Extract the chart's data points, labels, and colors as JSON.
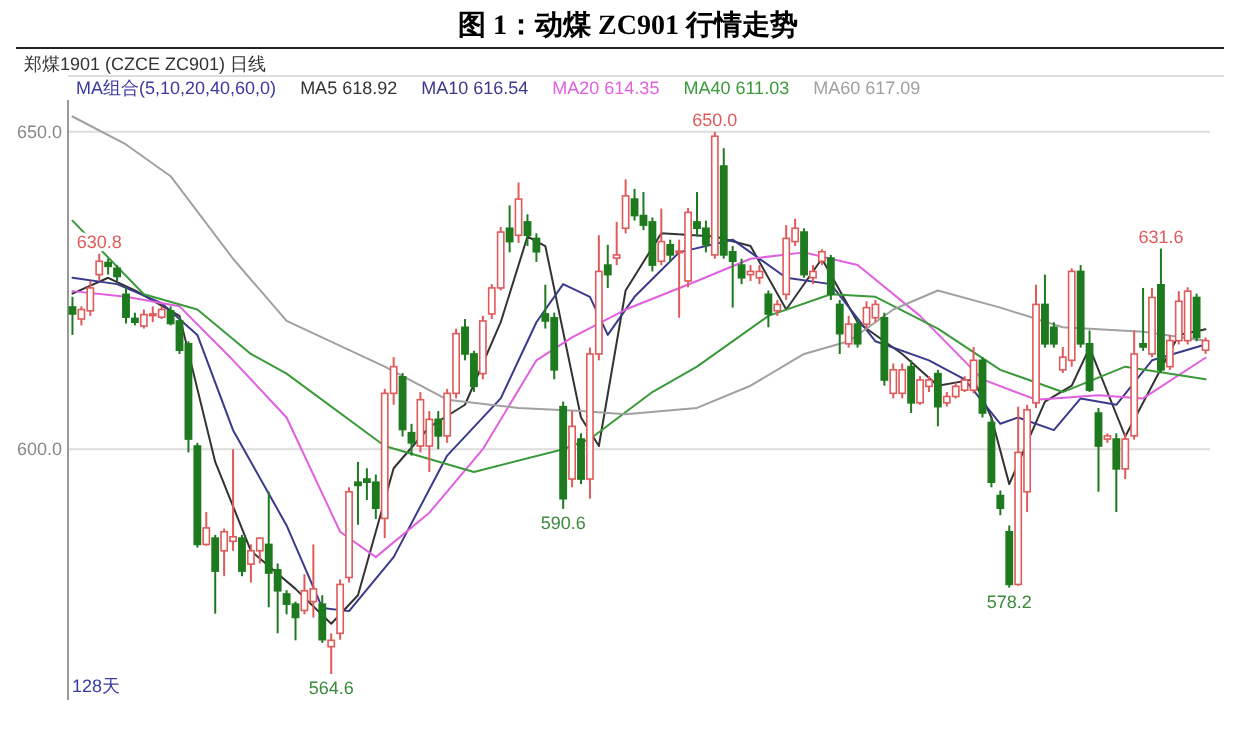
{
  "chart_data": {
    "type": "candlestick",
    "title": "图 1：动煤 ZC901 行情走势",
    "subtitle": "郑煤1901 (CZCE ZC901)  日线",
    "annotations": [
      "MA组合(5,10,20,40,60,0)",
      "128天",
      {
        "text": "630.8",
        "y": 630.8
      },
      {
        "text": "564.6",
        "y": 564.6
      },
      {
        "text": "590.6",
        "y": 590.6
      },
      {
        "text": "650.0",
        "y": 650.0
      },
      {
        "text": "578.2",
        "y": 578.2
      },
      {
        "text": "631.6",
        "y": 631.6
      }
    ],
    "ylim": [
      560.5,
      655
    ],
    "yticks": [
      {
        "value": 600,
        "label": "600.0"
      },
      {
        "value": 650,
        "label": "650.0"
      }
    ],
    "grid": "y",
    "legend": "top left",
    "tick_labels": "y",
    "categories": [
      null,
      null,
      null,
      null,
      null,
      null,
      null,
      null,
      null,
      null,
      null,
      null,
      null,
      null,
      null,
      null,
      null,
      null,
      null,
      null,
      null,
      null,
      null,
      null,
      null,
      null,
      null,
      null,
      null,
      null,
      null,
      null,
      null,
      null,
      null,
      null,
      null,
      null,
      null,
      null,
      null,
      null,
      null,
      null,
      null,
      null,
      null,
      null,
      null,
      null,
      null,
      null,
      null,
      null,
      null,
      null,
      null,
      null,
      null,
      null,
      null,
      null,
      null,
      null,
      null,
      null,
      null,
      null,
      null,
      null,
      null,
      null,
      null,
      null,
      null,
      null,
      null,
      null,
      null,
      null,
      null,
      null,
      null,
      null,
      null,
      null,
      null,
      null,
      null,
      null,
      null,
      null,
      null,
      null,
      null,
      null,
      null,
      null,
      null,
      null,
      null,
      null,
      null,
      null,
      null,
      null,
      null,
      null,
      null,
      null,
      null,
      null,
      null,
      null,
      null,
      null,
      null,
      null,
      null,
      null,
      null,
      null,
      null,
      null,
      null,
      null,
      null,
      null
    ],
    "ohlc": [
      [
        622.4,
        624,
        618,
        621.3
      ],
      [
        620.5,
        622.5,
        619.5,
        622
      ],
      [
        621.8,
        626.5,
        621,
        625.4
      ],
      [
        627.5,
        630.8,
        626.5,
        629.6
      ],
      [
        629.4,
        630,
        627.5,
        628.8
      ],
      [
        628.5,
        629,
        626.5,
        627.2
      ],
      [
        624.4,
        625.5,
        619.8,
        620.8
      ],
      [
        620.6,
        621.5,
        619.5,
        620
      ],
      [
        619.4,
        622,
        619,
        621.2
      ],
      [
        621.2,
        622.5,
        620,
        621.3
      ],
      [
        620.8,
        622.5,
        620.5,
        622
      ],
      [
        621.8,
        622.5,
        619.5,
        619.8
      ],
      [
        620.2,
        620.8,
        615,
        615.6
      ],
      [
        616.6,
        617,
        599.5,
        601.6
      ],
      [
        600.5,
        601,
        584.5,
        585
      ],
      [
        585,
        590.1,
        584.8,
        587.6
      ],
      [
        586,
        586.5,
        574.1,
        580.8
      ],
      [
        584,
        587.5,
        580,
        587
      ],
      [
        585.5,
        600,
        584,
        586.2
      ],
      [
        586,
        586.5,
        580,
        580.8
      ],
      [
        581.9,
        585,
        579,
        584
      ],
      [
        584,
        586,
        582,
        586
      ],
      [
        585,
        593.3,
        575.1,
        580.5
      ],
      [
        581,
        582,
        571,
        577.7
      ],
      [
        577.2,
        577.8,
        574,
        575.6
      ],
      [
        575.6,
        576,
        569.9,
        573.5
      ],
      [
        574.6,
        580.3,
        574,
        577.7
      ],
      [
        576,
        585,
        573.5,
        578
      ],
      [
        575.6,
        577,
        569.5,
        570
      ],
      [
        568.9,
        571,
        564.6,
        569.9
      ],
      [
        571,
        579.5,
        570,
        578.7
      ],
      [
        579.8,
        594,
        579,
        593.3
      ],
      [
        594.8,
        598,
        588.1,
        594.3
      ],
      [
        595.3,
        597,
        592,
        594.8
      ],
      [
        594.8,
        596,
        589,
        590.7
      ],
      [
        589.1,
        609.5,
        586,
        608.8
      ],
      [
        608.8,
        614.5,
        607,
        613
      ],
      [
        611.4,
        612,
        602,
        603.1
      ],
      [
        602.6,
        604,
        599,
        601
      ],
      [
        600.5,
        609,
        599.5,
        607.8
      ],
      [
        600.5,
        606,
        596.4,
        604.7
      ],
      [
        604.7,
        606,
        600,
        602.1
      ],
      [
        602.1,
        609.5,
        601,
        608.8
      ],
      [
        608.8,
        619,
        608,
        618.2
      ],
      [
        619.2,
        620.5,
        614,
        615
      ],
      [
        615,
        615.5,
        609,
        609.9
      ],
      [
        611.9,
        621,
        611,
        620.2
      ],
      [
        621.3,
        626,
        620.5,
        625.4
      ],
      [
        625.4,
        635,
        625,
        634.2
      ],
      [
        634.8,
        638.4,
        631,
        632.7
      ],
      [
        633.7,
        642,
        632.5,
        639.4
      ],
      [
        635.8,
        637,
        632,
        633.7
      ],
      [
        633.2,
        634,
        629.5,
        631.1
      ],
      [
        621.3,
        625.9,
        619,
        620.2
      ],
      [
        620.7,
        621.5,
        611,
        612.5
      ],
      [
        606.7,
        607.5,
        590.6,
        592.2
      ],
      [
        595.3,
        606,
        594,
        603.6
      ],
      [
        601.6,
        602.5,
        594.5,
        595.3
      ],
      [
        595.3,
        616,
        592.2,
        615
      ],
      [
        615,
        633.7,
        614,
        628
      ],
      [
        629,
        632.2,
        625.4,
        627.5
      ],
      [
        630.1,
        635.8,
        629,
        630.6
      ],
      [
        634.8,
        642.5,
        634,
        639.9
      ],
      [
        639.4,
        641,
        636,
        636.8
      ],
      [
        636.8,
        640.5,
        634.5,
        635.3
      ],
      [
        635.8,
        636.5,
        628,
        629
      ],
      [
        629.6,
        637.9,
        629,
        632.7
      ],
      [
        632.2,
        633,
        629.5,
        630.6
      ],
      [
        631.1,
        633,
        620.7,
        631.2
      ],
      [
        626.5,
        638,
        625.5,
        637.3
      ],
      [
        635.8,
        640.5,
        633.5,
        634.8
      ],
      [
        634.8,
        636,
        631,
        632.2
      ],
      [
        630.6,
        650,
        630,
        649.3
      ],
      [
        644.6,
        647.4,
        630,
        630.6
      ],
      [
        631.1,
        632,
        622.3,
        629.6
      ],
      [
        629,
        630,
        626,
        627
      ],
      [
        627.5,
        629,
        626.5,
        628
      ],
      [
        627,
        629,
        626,
        628
      ],
      [
        624.4,
        625,
        619.2,
        621.3
      ],
      [
        621.8,
        623.5,
        621,
        622.8
      ],
      [
        624.4,
        635.3,
        623.5,
        633.2
      ],
      [
        632.7,
        636.3,
        632,
        634.8
      ],
      [
        634.2,
        634.8,
        627,
        627.5
      ],
      [
        627,
        629,
        626,
        628
      ],
      [
        629.6,
        631.5,
        629,
        631.1
      ],
      [
        630.1,
        630.6,
        623.5,
        624.4
      ],
      [
        622.8,
        623.5,
        615,
        618.2
      ],
      [
        616.6,
        621,
        616,
        619.7
      ],
      [
        619.7,
        620.5,
        616,
        616.6
      ],
      [
        619.7,
        623.3,
        619,
        622.3
      ],
      [
        620.7,
        623.5,
        620,
        622.8
      ],
      [
        620.7,
        621.5,
        610,
        610.9
      ],
      [
        608.8,
        613.5,
        608,
        612.5
      ],
      [
        608.8,
        613.5,
        608,
        612.5
      ],
      [
        613,
        614,
        605.7,
        607.3
      ],
      [
        607.3,
        611.5,
        607,
        610.9
      ],
      [
        609.9,
        611.5,
        609,
        610.9
      ],
      [
        611.9,
        612.5,
        603.6,
        606.7
      ],
      [
        607.3,
        609,
        606.7,
        608.3
      ],
      [
        608.3,
        610.5,
        608,
        609.9
      ],
      [
        609.3,
        611.5,
        609,
        610.9
      ],
      [
        609.3,
        616.1,
        608.8,
        614
      ],
      [
        614,
        614.5,
        605,
        605.7
      ],
      [
        604.2,
        605,
        594,
        594.8
      ],
      [
        592.7,
        593.5,
        589.6,
        590.7
      ],
      [
        587,
        588,
        578.2,
        578.7
      ],
      [
        578.7,
        606.7,
        578.5,
        599.5
      ],
      [
        593.3,
        607,
        590.1,
        606.2
      ],
      [
        607.3,
        625.9,
        606.5,
        622.8
      ],
      [
        622.8,
        627.5,
        616,
        616.6
      ],
      [
        619.2,
        620,
        616,
        616.6
      ],
      [
        612.5,
        616.1,
        612,
        614.5
      ],
      [
        614,
        628.5,
        613,
        628
      ],
      [
        628,
        629,
        616,
        616.6
      ],
      [
        616.6,
        618.7,
        609,
        609.3
      ],
      [
        605.7,
        606.5,
        593.3,
        600.5
      ],
      [
        601.6,
        602.5,
        601,
        602.1
      ],
      [
        601.6,
        602.5,
        590.1,
        596.9
      ],
      [
        596.9,
        602.5,
        595.3,
        601.6
      ],
      [
        602.1,
        618.7,
        601.5,
        615
      ],
      [
        616.6,
        625.4,
        615.5,
        616.1
      ],
      [
        615,
        625.4,
        614.5,
        623.9
      ],
      [
        625.9,
        631.6,
        612,
        612.5
      ],
      [
        613,
        618,
        612.5,
        617.1
      ],
      [
        617.1,
        624.9,
        616.5,
        623.3
      ],
      [
        617.1,
        625.5,
        616.5,
        624.9
      ],
      [
        623.9,
        624.5,
        617,
        617.6
      ],
      [
        615.6,
        617.6,
        615,
        617.1
      ]
    ],
    "series": [
      {
        "name": "MA5 618.92",
        "type": "line",
        "color": "#333333",
        "values": [
          624.5,
          null,
          null,
          null,
          627,
          null,
          null,
          625,
          null,
          null,
          null,
          null,
          621,
          null,
          null,
          null,
          598,
          null,
          null,
          null,
          584,
          null,
          null,
          null,
          null,
          578,
          null,
          null,
          null,
          572.5,
          null,
          null,
          577,
          null,
          null,
          null,
          597,
          null,
          null,
          null,
          603.5,
          null,
          null,
          null,
          607,
          null,
          null,
          null,
          620,
          null,
          null,
          633.5,
          null,
          632,
          null,
          null,
          null,
          605,
          null,
          600.5,
          null,
          null,
          625,
          null,
          null,
          null,
          634,
          null,
          null,
          null,
          null,
          null,
          633.5,
          null,
          null,
          null,
          632,
          null,
          null,
          null,
          622,
          null,
          null,
          null,
          630,
          null,
          null,
          null,
          620,
          null,
          null,
          null,
          null,
          615,
          null,
          null,
          null,
          610,
          null,
          null,
          null,
          611,
          null,
          605,
          null,
          594.5,
          null,
          null,
          null,
          607.5,
          null,
          null,
          610,
          null,
          616,
          null,
          null,
          null,
          602,
          null,
          null,
          610,
          null,
          null,
          618,
          null,
          null,
          618.9
        ]
      },
      {
        "name": "MA10 616.54",
        "type": "line",
        "color": "#3a3a8c",
        "values": [
          627,
          null,
          null,
          null,
          null,
          626,
          null,
          null,
          null,
          null,
          623,
          null,
          null,
          null,
          618,
          null,
          null,
          null,
          603,
          null,
          null,
          null,
          null,
          null,
          588,
          null,
          null,
          null,
          575,
          null,
          null,
          574.5,
          null,
          null,
          null,
          null,
          583,
          null,
          null,
          null,
          null,
          null,
          599,
          null,
          null,
          null,
          null,
          null,
          608,
          null,
          null,
          null,
          620,
          null,
          null,
          626,
          null,
          null,
          624,
          null,
          618,
          null,
          null,
          624,
          null,
          null,
          null,
          null,
          631,
          null,
          null,
          null,
          null,
          null,
          633,
          null,
          null,
          null,
          null,
          null,
          627,
          null,
          null,
          null,
          null,
          626,
          null,
          null,
          null,
          null,
          617,
          null,
          null,
          null,
          null,
          null,
          614,
          null,
          null,
          null,
          611,
          null,
          null,
          null,
          604,
          null,
          605,
          null,
          null,
          null,
          603,
          null,
          null,
          608,
          null,
          null,
          null,
          607,
          null,
          null,
          null,
          614,
          null,
          null,
          null,
          null,
          null,
          616.5
        ]
      },
      {
        "name": "MA20 614.35",
        "type": "line",
        "color": "#e060e0",
        "values": [
          624.9,
          null,
          null,
          null,
          null,
          null,
          624,
          null,
          null,
          null,
          null,
          null,
          622.5,
          null,
          null,
          null,
          null,
          null,
          614,
          null,
          null,
          null,
          null,
          null,
          605,
          null,
          null,
          null,
          null,
          null,
          587,
          null,
          null,
          null,
          583,
          null,
          null,
          null,
          null,
          null,
          590,
          null,
          null,
          null,
          null,
          null,
          600,
          null,
          null,
          null,
          null,
          null,
          614,
          null,
          null,
          null,
          617.6,
          null,
          null,
          null,
          null,
          null,
          622,
          null,
          null,
          null,
          null,
          null,
          null,
          null,
          626.5,
          null,
          null,
          null,
          null,
          null,
          630,
          null,
          null,
          null,
          null,
          null,
          631,
          null,
          null,
          null,
          null,
          null,
          629,
          null,
          null,
          null,
          null,
          null,
          null,
          621,
          null,
          null,
          null,
          null,
          null,
          null,
          611,
          null,
          null,
          null,
          null,
          null,
          607.8,
          null,
          null,
          null,
          null,
          null,
          null,
          608.5,
          null,
          null,
          null,
          null,
          608,
          null,
          null,
          null,
          null,
          null,
          null,
          614.4
        ]
      },
      {
        "name": "MA40 611.03",
        "type": "line",
        "color": "#3a9a3a",
        "values": [
          636,
          null,
          null,
          null,
          null,
          null,
          null,
          null,
          624.4,
          null,
          null,
          null,
          null,
          null,
          622,
          null,
          null,
          null,
          null,
          null,
          615,
          null,
          null,
          null,
          611.9,
          null,
          null,
          null,
          null,
          null,
          null,
          null,
          null,
          null,
          null,
          600.5,
          null,
          null,
          null,
          null,
          null,
          null,
          null,
          null,
          null,
          596.4,
          null,
          null,
          null,
          null,
          null,
          null,
          null,
          null,
          null,
          600,
          null,
          null,
          601.6,
          null,
          null,
          null,
          null,
          null,
          null,
          609,
          null,
          null,
          null,
          null,
          613,
          null,
          null,
          null,
          null,
          null,
          null,
          null,
          621,
          null,
          null,
          null,
          null,
          null,
          null,
          624.4,
          null,
          null,
          null,
          null,
          624,
          null,
          null,
          null,
          null,
          null,
          null,
          619,
          null,
          null,
          null,
          null,
          null,
          null,
          612.5,
          null,
          null,
          null,
          null,
          null,
          null,
          609,
          null,
          null,
          null,
          null,
          null,
          null,
          613,
          null,
          null,
          null,
          null,
          null,
          null,
          null,
          null,
          611.0
        ]
      },
      {
        "name": "MA60 617.09",
        "type": "line",
        "color": "#a0a0a0",
        "values": [
          652.4,
          null,
          null,
          null,
          null,
          null,
          648,
          null,
          null,
          null,
          null,
          643,
          null,
          null,
          null,
          null,
          null,
          null,
          630,
          null,
          null,
          null,
          null,
          null,
          620.2,
          null,
          null,
          null,
          null,
          null,
          null,
          null,
          null,
          null,
          null,
          613,
          null,
          null,
          null,
          null,
          null,
          null,
          607.8,
          null,
          null,
          null,
          null,
          null,
          null,
          null,
          606.5,
          null,
          null,
          null,
          null,
          null,
          null,
          606,
          null,
          null,
          null,
          null,
          605.5,
          null,
          null,
          null,
          null,
          null,
          null,
          null,
          606.5,
          null,
          null,
          null,
          null,
          null,
          610,
          null,
          null,
          null,
          null,
          null,
          615,
          null,
          null,
          null,
          null,
          617,
          null,
          null,
          null,
          null,
          622,
          null,
          null,
          null,
          null,
          625,
          null,
          null,
          null,
          null,
          null,
          null,
          622.3,
          null,
          null,
          null,
          null,
          null,
          null,
          619.2,
          null,
          null,
          null,
          null,
          null,
          null,
          null,
          null,
          618.5,
          null,
          null,
          null,
          null,
          null,
          null,
          617.1
        ]
      }
    ]
  }
}
